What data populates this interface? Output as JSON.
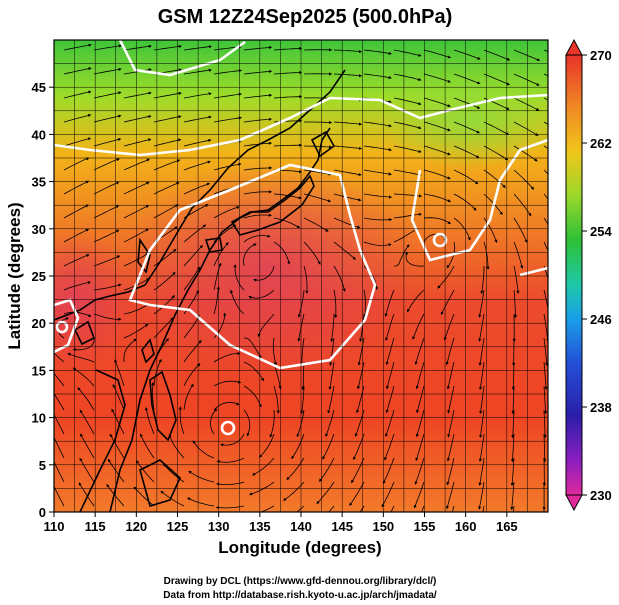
{
  "title": "GSM 12Z24Sep2025 (500.0hPa)",
  "chart_data": {
    "type": "heatmap",
    "xlabel": "Longitude (degrees)",
    "ylabel": "Latitude  (degrees)",
    "xlim": [
      110,
      170
    ],
    "ylim": [
      0,
      50
    ],
    "x_ticks": [
      "110",
      "115",
      "120",
      "125",
      "130",
      "135",
      "140",
      "145",
      "150",
      "155",
      "160",
      "165"
    ],
    "y_ticks": [
      "0",
      "5",
      "10",
      "15",
      "20",
      "25",
      "30",
      "35",
      "40",
      "45"
    ],
    "grid": true,
    "colorbar": {
      "min": 230,
      "max": 270,
      "labels": [
        "270",
        "262",
        "254",
        "246",
        "238",
        "230"
      ],
      "placement": "right"
    }
  },
  "credits": {
    "line1": "Drawing by DCL (https://www.gfd-dennou.org/library/dcl/)",
    "line2": "Data from http://database.rish.kyoto-u.ac.jp/arch/jmadata/"
  }
}
